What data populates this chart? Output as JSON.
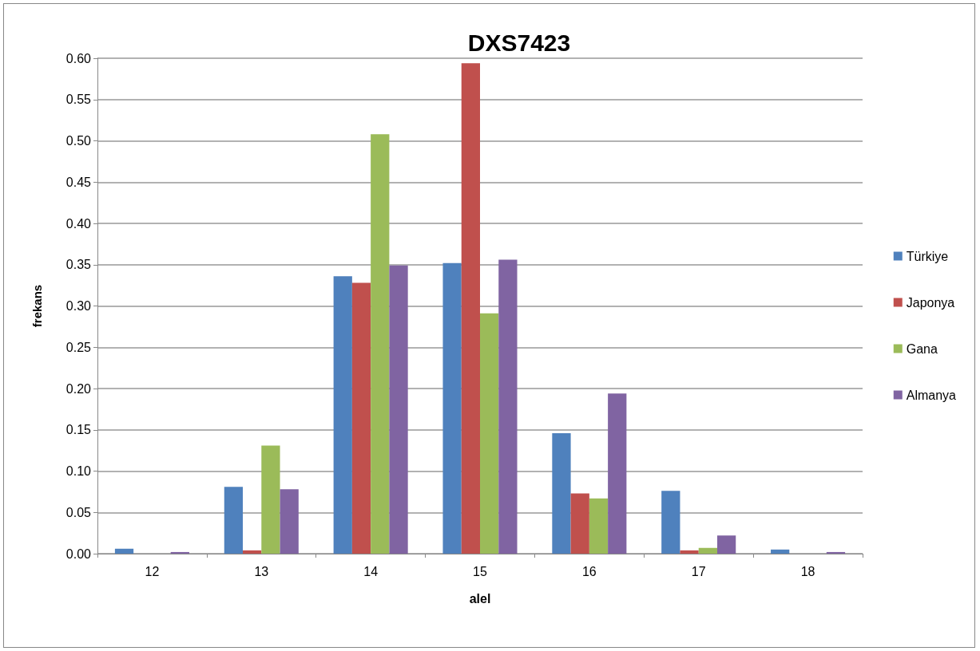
{
  "chart_data": {
    "type": "bar",
    "title": "DXS7423",
    "xlabel": "alel",
    "ylabel": "frekans",
    "categories": [
      "12",
      "13",
      "14",
      "15",
      "16",
      "17",
      "18"
    ],
    "series": [
      {
        "name": "Türkiye",
        "color": "#4f81bd",
        "values": [
          0.006,
          0.081,
          0.336,
          0.352,
          0.146,
          0.076,
          0.005
        ]
      },
      {
        "name": "Japonya",
        "color": "#c0504d",
        "values": [
          null,
          0.004,
          0.328,
          0.594,
          0.073,
          0.004,
          null
        ]
      },
      {
        "name": "Gana",
        "color": "#9bbb59",
        "values": [
          null,
          0.131,
          0.508,
          0.291,
          0.067,
          0.007,
          null
        ]
      },
      {
        "name": "Almanya",
        "color": "#8064a2",
        "values": [
          0.002,
          0.078,
          0.349,
          0.356,
          0.194,
          0.022,
          0.002
        ]
      }
    ],
    "ylim": [
      0,
      0.6
    ],
    "yticks": [
      {
        "value": 0,
        "label": "0.00"
      },
      {
        "value": 0.05,
        "label": "0.05"
      },
      {
        "value": 0.1,
        "label": "0.10"
      },
      {
        "value": 0.15,
        "label": "0.15"
      },
      {
        "value": 0.2,
        "label": "0.20"
      },
      {
        "value": 0.25,
        "label": "0.25"
      },
      {
        "value": 0.3,
        "label": "0.30"
      },
      {
        "value": 0.35,
        "label": "0.35"
      },
      {
        "value": 0.4,
        "label": "0.40"
      },
      {
        "value": 0.45,
        "label": "0.45"
      },
      {
        "value": 0.5,
        "label": "0.50"
      },
      {
        "value": 0.55,
        "label": "0.55"
      },
      {
        "value": 0.6,
        "label": "0.60"
      }
    ],
    "grid": "y",
    "legend": "right"
  }
}
